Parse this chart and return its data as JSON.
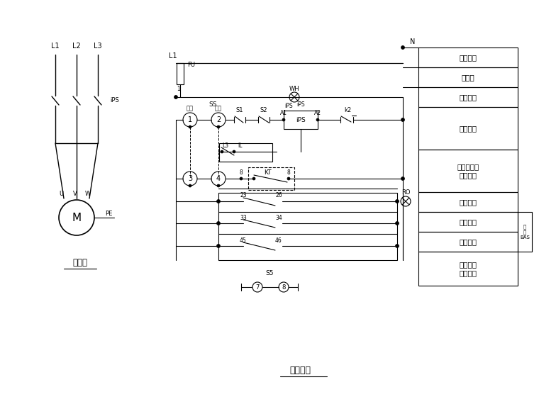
{
  "title_main": "主回路",
  "title_control": "控制原理",
  "bg_color": "#ffffff",
  "line_color": "#000000",
  "legend_items": [
    "控制电源",
    "熔断器",
    "电源指示",
    "手动控制",
    "发电机启动\n信号控制",
    "运行指示",
    "运行信号",
    "故障信号",
    "转换开关\n位置信号"
  ],
  "legend_right_label": "变\n回\nBAS",
  "phase_labels": [
    "L1",
    "L2",
    "L3"
  ],
  "motor_label": "M",
  "uvw_labels": [
    "U",
    "V",
    "W",
    "PE"
  ],
  "ips_label": "iPS",
  "fu_label": "FU",
  "wh_label": "WH",
  "ro_label": "RO",
  "ss_label": "SS",
  "ss3_label": "S5",
  "kt_label": "KT",
  "manual_label": "手动",
  "auto_label": "自动",
  "s1_label": "S1",
  "s2_label": "S2",
  "a1_label": "A1",
  "a2_label": "A2",
  "k2_label": "k2",
  "l3_label": "L3",
  "il_label": "IL",
  "n_label": "N",
  "l1_ctrl_label": "L1"
}
